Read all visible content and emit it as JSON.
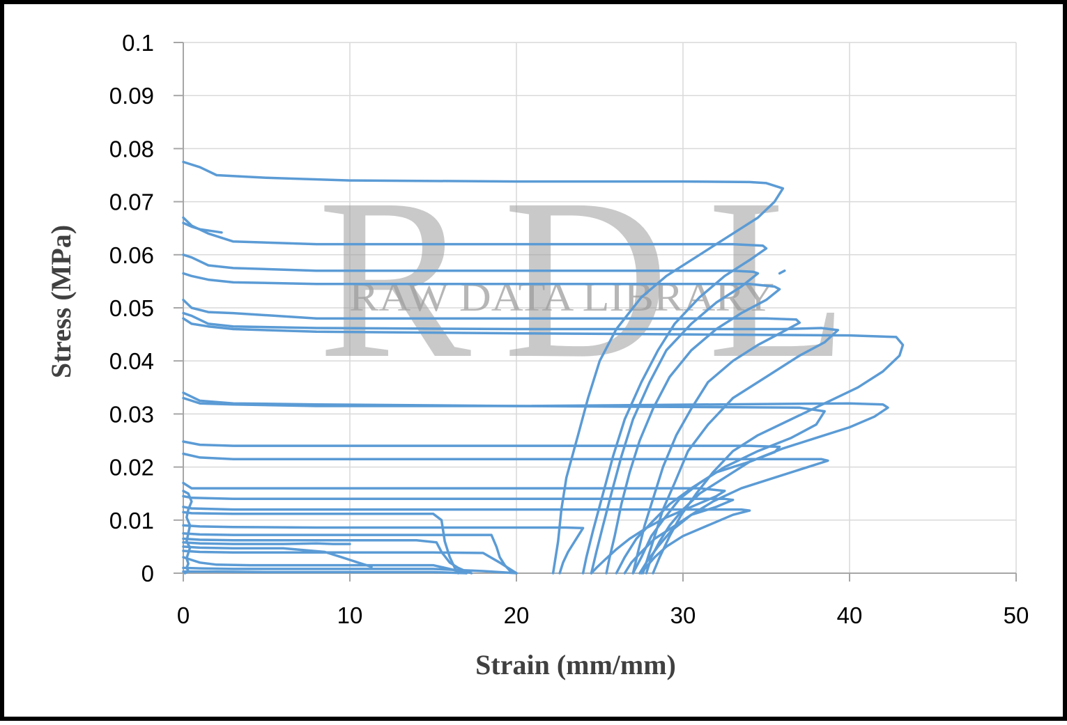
{
  "watermark": {
    "letters": [
      "R",
      "D",
      "L"
    ],
    "text": "RAW DATA LIBRARY"
  },
  "colors": {
    "series": "#5b9bd5",
    "grid": "#d9d9d9",
    "axis": "#a6a6a6"
  },
  "chart_data": {
    "type": "line",
    "title": "",
    "xlabel": "Strain (mm/mm)",
    "ylabel": "Stress  (MPa)",
    "xlim": [
      0,
      50
    ],
    "ylim": [
      0,
      0.1
    ],
    "x_ticks": [
      "0",
      "10",
      "20",
      "30",
      "40",
      "50"
    ],
    "y_ticks": [
      "0",
      "0.01",
      "0.02",
      "0.03",
      "0.04",
      "0.05",
      "0.06",
      "0.07",
      "0.08",
      "0.09",
      "0.1"
    ],
    "grid": true,
    "legend": "none",
    "series": [
      {
        "x": [
          0,
          1,
          2,
          5,
          10,
          20,
          30,
          34,
          35,
          36,
          35.5,
          34.5,
          33,
          31,
          29,
          27.5,
          26,
          25,
          24.3,
          23.7,
          23,
          22.7,
          22.5,
          22.3,
          22.2
        ],
        "y": [
          0.0775,
          0.0765,
          0.075,
          0.0745,
          0.074,
          0.0738,
          0.0738,
          0.0737,
          0.0735,
          0.0725,
          0.07,
          0.067,
          0.064,
          0.06,
          0.056,
          0.052,
          0.046,
          0.04,
          0.033,
          0.026,
          0.018,
          0.012,
          0.006,
          0.002,
          0
        ]
      },
      {
        "x": [
          0,
          0.5,
          1.5,
          3,
          8,
          20,
          33,
          34.8,
          35,
          34,
          32.5,
          31,
          29.5,
          28.5,
          27.5,
          26.5,
          25.8,
          25.2,
          24.6,
          24.2,
          24
        ],
        "y": [
          0.067,
          0.0655,
          0.064,
          0.0625,
          0.062,
          0.062,
          0.062,
          0.0617,
          0.0612,
          0.059,
          0.056,
          0.052,
          0.047,
          0.042,
          0.036,
          0.029,
          0.022,
          0.015,
          0.008,
          0.003,
          0
        ]
      },
      {
        "x": [
          0,
          0.5,
          1,
          2.3
        ],
        "y": [
          0.066,
          0.0653,
          0.0648,
          0.0642
        ]
      },
      {
        "x": [
          0,
          0.5,
          1.5,
          3,
          8,
          20,
          33,
          34.2,
          34.5,
          33.5,
          32,
          30.5,
          29,
          28,
          27,
          26.3,
          25.7,
          25.2,
          24.8,
          24.5
        ],
        "y": [
          0.06,
          0.0595,
          0.058,
          0.0575,
          0.057,
          0.057,
          0.057,
          0.0568,
          0.0565,
          0.054,
          0.051,
          0.047,
          0.042,
          0.036,
          0.029,
          0.022,
          0.015,
          0.009,
          0.004,
          0
        ]
      },
      {
        "x": [
          0,
          0.5,
          1.5,
          3,
          8,
          20,
          34,
          35.5,
          35.8,
          35,
          33.5,
          32,
          30.5,
          29.2,
          28.2,
          27.4,
          26.8,
          26.3,
          25.9,
          25.6,
          25.4
        ],
        "y": [
          0.0565,
          0.056,
          0.0553,
          0.0548,
          0.0545,
          0.0545,
          0.0545,
          0.054,
          0.0535,
          0.0515,
          0.049,
          0.046,
          0.042,
          0.037,
          0.031,
          0.025,
          0.019,
          0.013,
          0.007,
          0.003,
          0
        ]
      },
      {
        "x": [
          35.8,
          36.1
        ],
        "y": [
          0.0565,
          0.057
        ]
      },
      {
        "x": [
          0,
          0.5,
          1.5,
          3,
          8,
          20,
          35,
          36.8,
          37,
          36,
          34.5,
          33,
          31.5,
          30.5,
          29.6,
          28.8,
          28.2,
          27.7,
          27.3,
          27
        ],
        "y": [
          0.0515,
          0.05,
          0.0492,
          0.049,
          0.048,
          0.048,
          0.048,
          0.0478,
          0.0472,
          0.0455,
          0.043,
          0.04,
          0.036,
          0.031,
          0.026,
          0.02,
          0.014,
          0.009,
          0.004,
          0
        ]
      },
      {
        "x": [
          0,
          0.5,
          1.5,
          3,
          8,
          20,
          36,
          38.3,
          39.3,
          38.5,
          37,
          35,
          33,
          31.5,
          30.3,
          29.5,
          28.8,
          28.3,
          27.9,
          27.6
        ],
        "y": [
          0.049,
          0.0485,
          0.047,
          0.0465,
          0.0462,
          0.046,
          0.046,
          0.0462,
          0.0458,
          0.0435,
          0.041,
          0.037,
          0.033,
          0.028,
          0.023,
          0.017,
          0.012,
          0.007,
          0.003,
          0
        ]
      },
      {
        "x": [
          0,
          0.5,
          1.5,
          3,
          8,
          20,
          40,
          42.8,
          43.2,
          43,
          42,
          40.5,
          38.5,
          36.5,
          34.5,
          33,
          31.8,
          30.8,
          29.9,
          29.2,
          28.6,
          28.2
        ],
        "y": [
          0.048,
          0.047,
          0.0465,
          0.046,
          0.0455,
          0.0452,
          0.0448,
          0.0445,
          0.043,
          0.041,
          0.038,
          0.035,
          0.032,
          0.029,
          0.026,
          0.023,
          0.019,
          0.015,
          0.011,
          0.007,
          0.003,
          0
        ]
      },
      {
        "x": [
          0,
          1,
          3,
          8,
          20,
          37,
          38.5,
          38,
          36.5,
          34.5,
          32.5,
          31,
          29.8,
          28.8,
          28.1,
          27.5,
          27
        ],
        "y": [
          0.034,
          0.0325,
          0.032,
          0.0318,
          0.0315,
          0.0312,
          0.0305,
          0.028,
          0.0255,
          0.023,
          0.02,
          0.017,
          0.014,
          0.01,
          0.007,
          0.003,
          0
        ]
      },
      {
        "x": [
          0,
          1,
          3,
          8,
          20,
          40,
          42,
          42.3,
          41.5,
          40,
          38,
          36,
          34,
          32.5,
          31,
          30,
          29.2,
          28.6,
          28.1,
          27.8
        ],
        "y": [
          0.033,
          0.032,
          0.0318,
          0.0315,
          0.0315,
          0.032,
          0.0318,
          0.0312,
          0.0295,
          0.0275,
          0.0255,
          0.0235,
          0.021,
          0.018,
          0.015,
          0.012,
          0.009,
          0.006,
          0.003,
          0
        ]
      },
      {
        "x": [
          0,
          1,
          3,
          8,
          20,
          34,
          35.8,
          35.5,
          34,
          32,
          30.5,
          29.2,
          28.1,
          27.2,
          26.5,
          26
        ],
        "y": [
          0.0248,
          0.0242,
          0.024,
          0.024,
          0.024,
          0.024,
          0.0238,
          0.0228,
          0.021,
          0.019,
          0.016,
          0.013,
          0.0095,
          0.0065,
          0.003,
          0
        ]
      },
      {
        "x": [
          0,
          1,
          3,
          8,
          20,
          36,
          38.3,
          38.7,
          37.5,
          35.5,
          33.5,
          31.8,
          30.5,
          29.3,
          28.5,
          27.9,
          27.4
        ],
        "y": [
          0.0225,
          0.0218,
          0.0215,
          0.0215,
          0.0215,
          0.0215,
          0.0215,
          0.0212,
          0.02,
          0.018,
          0.016,
          0.0135,
          0.011,
          0.008,
          0.005,
          0.0025,
          0
        ]
      },
      {
        "x": [
          0,
          0.5,
          3,
          10,
          20,
          31,
          32.5,
          32,
          30.5,
          29,
          27.8,
          26.8,
          26,
          25.3,
          24.8,
          24.5
        ],
        "y": [
          0.017,
          0.016,
          0.016,
          0.016,
          0.016,
          0.016,
          0.0155,
          0.0145,
          0.0125,
          0.0105,
          0.0085,
          0.0065,
          0.0045,
          0.0025,
          0.001,
          0
        ]
      },
      {
        "x": [
          0,
          0.5,
          3,
          10,
          20,
          30,
          32.5,
          33,
          32,
          30.5,
          29.3,
          28.3,
          27.5,
          26.9,
          26.5
        ],
        "y": [
          0.0145,
          0.0142,
          0.014,
          0.014,
          0.014,
          0.014,
          0.014,
          0.0138,
          0.0125,
          0.011,
          0.0085,
          0.0065,
          0.004,
          0.002,
          0
        ]
      },
      {
        "x": [
          0,
          0.5,
          3,
          10,
          20,
          31,
          33.5,
          34,
          33,
          31.5,
          30,
          29,
          28.3,
          27.8,
          27.5
        ],
        "y": [
          0.0125,
          0.0122,
          0.012,
          0.012,
          0.012,
          0.012,
          0.012,
          0.0118,
          0.011,
          0.009,
          0.007,
          0.005,
          0.003,
          0.0012,
          0
        ]
      },
      {
        "x": [
          0,
          0.5,
          3,
          10,
          15,
          15.5,
          15.7,
          16,
          16.3,
          16.5
        ],
        "y": [
          0.0115,
          0.0113,
          0.0112,
          0.0112,
          0.0112,
          0.01,
          0.006,
          0.003,
          0.001,
          0
        ]
      },
      {
        "x": [
          0,
          1,
          3,
          8,
          15,
          20,
          23,
          24,
          23.5,
          23.1,
          22.8,
          22.6
        ],
        "y": [
          0.009,
          0.0088,
          0.0087,
          0.0086,
          0.0086,
          0.0086,
          0.0086,
          0.0085,
          0.006,
          0.004,
          0.002,
          0
        ]
      },
      {
        "x": [
          0,
          1,
          3,
          8,
          15,
          17,
          18.5,
          18.8,
          19,
          19.3,
          19.6,
          20
        ],
        "y": [
          0.0075,
          0.0073,
          0.0072,
          0.0072,
          0.0072,
          0.0072,
          0.0072,
          0.005,
          0.003,
          0.0015,
          0.0005,
          0
        ]
      },
      {
        "x": [
          0,
          1,
          3,
          8,
          14,
          15.2,
          15.5,
          16,
          16.5,
          17,
          17.3
        ],
        "y": [
          0.0065,
          0.0063,
          0.0062,
          0.0062,
          0.0062,
          0.0058,
          0.004,
          0.002,
          0.001,
          0.0003,
          0
        ]
      },
      {
        "x": [
          0,
          1,
          3,
          6,
          8,
          9,
          10
        ],
        "y": [
          0.0058,
          0.0056,
          0.0055,
          0.0055,
          0.0056,
          0.0055,
          0.0055
        ]
      },
      {
        "x": [
          0,
          1,
          3,
          6,
          8.5,
          9.5,
          10.5,
          11,
          11.3
        ],
        "y": [
          0.005,
          0.0048,
          0.0047,
          0.0047,
          0.004,
          0.003,
          0.002,
          0.0015,
          0.0012
        ]
      },
      {
        "x": [
          0,
          1,
          3,
          5,
          8,
          15,
          18,
          19,
          20
        ],
        "y": [
          0.0042,
          0.004,
          0.0039,
          0.0039,
          0.0039,
          0.0039,
          0.0038,
          0.002,
          0
        ]
      },
      {
        "x": [
          0,
          0.5,
          1,
          2,
          4,
          10,
          15,
          16,
          17
        ],
        "y": [
          0.003,
          0.0025,
          0.002,
          0.0016,
          0.0015,
          0.0015,
          0.0015,
          0.0008,
          0
        ]
      },
      {
        "x": [
          0,
          1,
          3,
          10,
          15,
          18,
          20
        ],
        "y": [
          0.001,
          0.0009,
          0.0008,
          0.0008,
          0.0008,
          0.0004,
          0
        ]
      },
      {
        "x": [
          0,
          0.3,
          0.5,
          0.3,
          0.2,
          0.4,
          0.3,
          0.2,
          0.4,
          0.3,
          0.2,
          0.3,
          0.2,
          0.3,
          0.1
        ],
        "y": [
          0.0155,
          0.015,
          0.0135,
          0.012,
          0.0105,
          0.009,
          0.0075,
          0.006,
          0.0048,
          0.0038,
          0.0028,
          0.0018,
          0.001,
          0.0004,
          0
        ]
      },
      {
        "x": [
          0,
          2,
          5,
          10,
          15,
          16,
          17
        ],
        "y": [
          0.0003,
          0.0003,
          0.0002,
          0.0002,
          0.0002,
          0.0001,
          0
        ]
      }
    ]
  }
}
